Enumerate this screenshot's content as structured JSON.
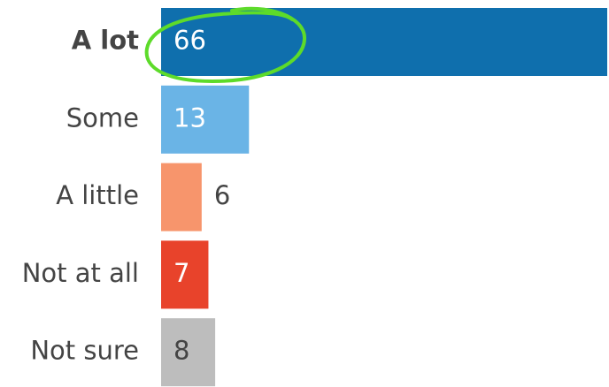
{
  "chart_data": {
    "type": "bar",
    "orientation": "horizontal",
    "categories": [
      "A lot",
      "Some",
      "A little",
      "Not at all",
      "Not sure"
    ],
    "values": [
      66,
      13,
      6,
      7,
      8
    ],
    "colors": [
      "#0f6fad",
      "#6ab4e6",
      "#f7956c",
      "#e8432b",
      "#bdbdbd"
    ]
  }
}
